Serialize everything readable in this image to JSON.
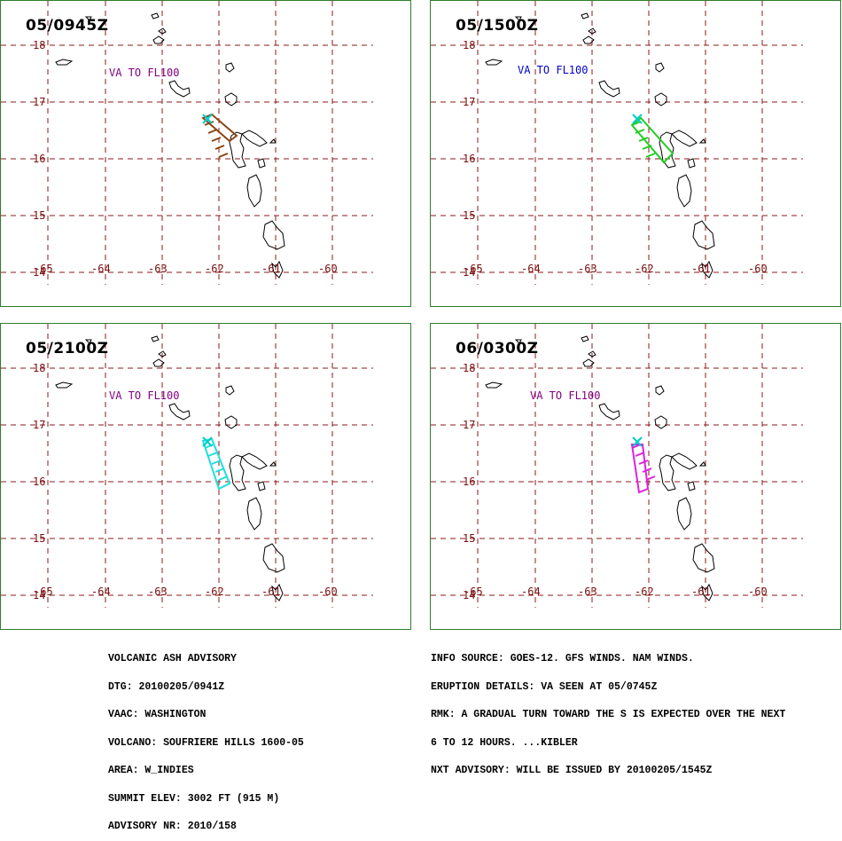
{
  "panels": [
    {
      "time": "05/0945Z",
      "label": "VA TO FL100",
      "label_color": "#800080",
      "ash_color": "#8b4513",
      "ash_shape": "nw_short"
    },
    {
      "time": "05/1500Z",
      "label": "VA TO FL100",
      "label_color": "#0000cc",
      "ash_color": "#22cc22",
      "ash_shape": "se_long"
    },
    {
      "time": "05/2100Z",
      "label": "VA TO FL100",
      "label_color": "#800080",
      "ash_color": "#22dddd",
      "ash_shape": "s_long"
    },
    {
      "time": "06/0300Z",
      "label": "VA TO FL100",
      "label_color": "#800080",
      "ash_color": "#dd22dd",
      "ash_shape": "s_narrow"
    }
  ],
  "map": {
    "lat_labels": [
      "18",
      "17",
      "16",
      "15",
      "14"
    ],
    "lon_labels": [
      "-65",
      "-64",
      "-63",
      "-62",
      "-61",
      "-60"
    ],
    "grid_color": "#8b1a1a",
    "volcano_color": "#00cccc"
  },
  "advisory": {
    "left": [
      "VOLCANIC ASH ADVISORY",
      "DTG: 20100205/0941Z",
      "VAAC: WASHINGTON",
      "VOLCANO: SOUFRIERE HILLS 1600-05",
      "AREA: W_INDIES",
      "SUMMIT ELEV: 3002 FT (915 M)",
      "ADVISORY NR: 2010/158"
    ],
    "right": [
      "INFO SOURCE: GOES-12. GFS WINDS. NAM WINDS.",
      "ERUPTION DETAILS: VA SEEN AT 05/0745Z",
      "RMK: A GRADUAL TURN TOWARD THE S IS EXPECTED OVER THE NEXT",
      "6 TO 12 HOURS. ...KIBLER",
      "NXT ADVISORY: WILL BE ISSUED BY 20100205/1545Z"
    ]
  }
}
